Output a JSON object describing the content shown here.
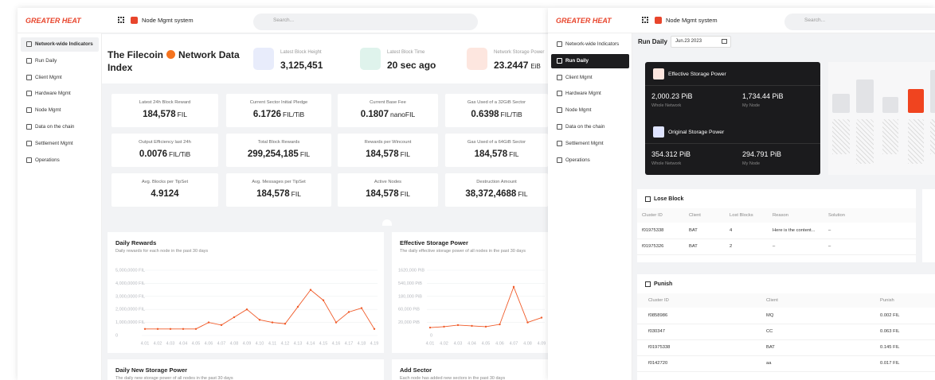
{
  "left": {
    "brand": "GREATER HEAT",
    "app": "Node Mgmt system",
    "search": "Search...",
    "nav": [
      "Network-wide Indicators",
      "Run Daily",
      "Client Mgmt",
      "Hardware Mgmt",
      "Node Mgmt",
      "Data on the chain",
      "Settlement Mgmt",
      "Operations"
    ],
    "title_start": "The Filecoin",
    "title_end": "Network Data Index",
    "stats": [
      {
        "label": "Latest Block Height",
        "value": "3,125,451"
      },
      {
        "label": "Latest Block Time",
        "value": "20 sec ago"
      },
      {
        "label": "Network Storage Power",
        "value": "23.2447",
        "unit": "EiB"
      }
    ],
    "metrics": [
      {
        "label": "Latest 24h Block Reward",
        "value": "184,578",
        "unit": "FIL"
      },
      {
        "label": "Current Sector Initial Pledge",
        "value": "6.1726",
        "unit": "FIL/TiB"
      },
      {
        "label": "Current Base Fee",
        "value": "0.1807",
        "unit": "nanoFIL"
      },
      {
        "label": "Gas Used of a 32GiB Sector",
        "value": "0.6398",
        "unit": "FIL/TiB"
      },
      {
        "label": "Output Efficiency last 24h",
        "value": "0.0076",
        "unit": "FIL/TiB"
      },
      {
        "label": "Total Block Rewards",
        "value": "299,254,185",
        "unit": "FIL"
      },
      {
        "label": "Rewards per Wincount",
        "value": "184,578",
        "unit": "FIL"
      },
      {
        "label": "Gas Used of a 64GiB Sector",
        "value": "184,578",
        "unit": "FIL"
      },
      {
        "label": "Avg. Blocks per TipSet",
        "value": "4.9124"
      },
      {
        "label": "Avg. Messages per TipSet",
        "value": "184,578",
        "unit": "FIL"
      },
      {
        "label": "Active Nodes",
        "value": "184,578",
        "unit": "FIL"
      },
      {
        "label": "Destruction Amount",
        "value": "38,372,4688",
        "unit": "FIL"
      }
    ],
    "more_panels": [
      {
        "title": "Daily New Storage Power",
        "subtitle": "The daily new storage power of all nodes in the past 30 days"
      },
      {
        "title": "Add Sector",
        "subtitle": "Each node has added new sectors in the past 30 days"
      }
    ]
  },
  "chart_data": [
    {
      "type": "line",
      "title": "Daily Rewards",
      "subtitle": "Daily rewards for each node in the past 30 days",
      "color": "#f05a28",
      "categories": [
        "4.01",
        "4.02",
        "4.03",
        "4.04",
        "4.05",
        "4.06",
        "4.07",
        "4.08",
        "4.09",
        "4.10",
        "4.11",
        "4.12",
        "4.13",
        "4.14",
        "4.15",
        "4.16",
        "4.17",
        "4.18",
        "4.19"
      ],
      "values": [
        5000000,
        5000000,
        5000000,
        5000000,
        5000000,
        10000000,
        8000000,
        14000000,
        20000000,
        12000000,
        10000000,
        9000000,
        22000000,
        35000000,
        27000000,
        10000000,
        18000000,
        21000000,
        5000000
      ],
      "ylim": [
        0,
        50000000
      ],
      "yticks": [
        0,
        {
          "value": 10000000,
          "label": "1,000,0000 FIL"
        },
        {
          "value": 20000000,
          "label": "2,000,0000 FIL"
        },
        {
          "value": 30000000,
          "label": "3,000,0000 FIL"
        },
        {
          "value": 40000000,
          "label": "4,000,0000 FIL"
        },
        {
          "value": 50000000,
          "label": "5,000,0000 FIL"
        }
      ],
      "grid": true
    },
    {
      "type": "line",
      "title": "Effective Storage Power",
      "subtitle": "The daily effective storage power of all nodes in the past 30 days",
      "color": "#f05a28",
      "categories": [
        "4.01",
        "4.02",
        "4.03",
        "4.04",
        "4.05",
        "4.06",
        "4.07",
        "4.08",
        "4.09"
      ],
      "values": [
        13000,
        14000,
        16000,
        15000,
        14000,
        17000,
        400000,
        20000,
        30000
      ],
      "log_scale": true,
      "ylim": [
        6667,
        1620000
      ],
      "zero_label": "0",
      "yticks": [
        {
          "value": 20000,
          "label": "20,000 PiB"
        },
        {
          "value": 60000,
          "label": "60,000 PiB"
        },
        {
          "value": 180000,
          "label": "180,000 PiB"
        },
        {
          "value": 540000,
          "label": "540,000 PiB"
        },
        {
          "value": 1620000,
          "label": "1620,000 PiB"
        }
      ],
      "grid": true
    }
  ],
  "right": {
    "brand": "GREATER HEAT",
    "app": "Node Mgmt system",
    "search": "Search...",
    "nav": [
      "Network-wide Indicators",
      "Run Daily",
      "Client Mgmt",
      "Hardware Mgmt",
      "Node Mgmt",
      "Data on the chain",
      "Settlement Mgmt",
      "Operations"
    ],
    "page_title": "Run Daily",
    "date": "Jun.23 2023",
    "storage": [
      {
        "title": "Effective Storage Power",
        "items": [
          {
            "value": "2,000.23 PiB",
            "label": "Whole Network"
          },
          {
            "value": "1,734.44 PiB",
            "label": "My Node"
          }
        ]
      },
      {
        "title": "Original Storage Power",
        "items": [
          {
            "value": "354.312 PiB",
            "label": "Whole Network"
          },
          {
            "value": "294.791 PiB",
            "label": "My Node"
          }
        ]
      }
    ],
    "lose_block": {
      "title": "Lose Block",
      "columns": [
        "Cluster ID",
        "Client",
        "Lost Blocks",
        "Reason",
        "Solution"
      ],
      "rows": [
        [
          "f01975338",
          "BAT",
          "4",
          "Here is the content...",
          "–"
        ],
        [
          "f01975326",
          "BAT",
          "2",
          "–",
          "–"
        ]
      ]
    },
    "punish": {
      "title": "Punish",
      "columns": [
        "Cluster ID",
        "Client",
        "Punish"
      ],
      "rows": [
        [
          "f0858986",
          "MQ",
          "0.002 FIL"
        ],
        [
          "f030347",
          "CC",
          "0.063 FIL"
        ],
        [
          "f01975338",
          "BAT",
          "0.145 FIL"
        ],
        [
          "f0142720",
          "aa",
          "0.017 FIL"
        ]
      ]
    }
  }
}
